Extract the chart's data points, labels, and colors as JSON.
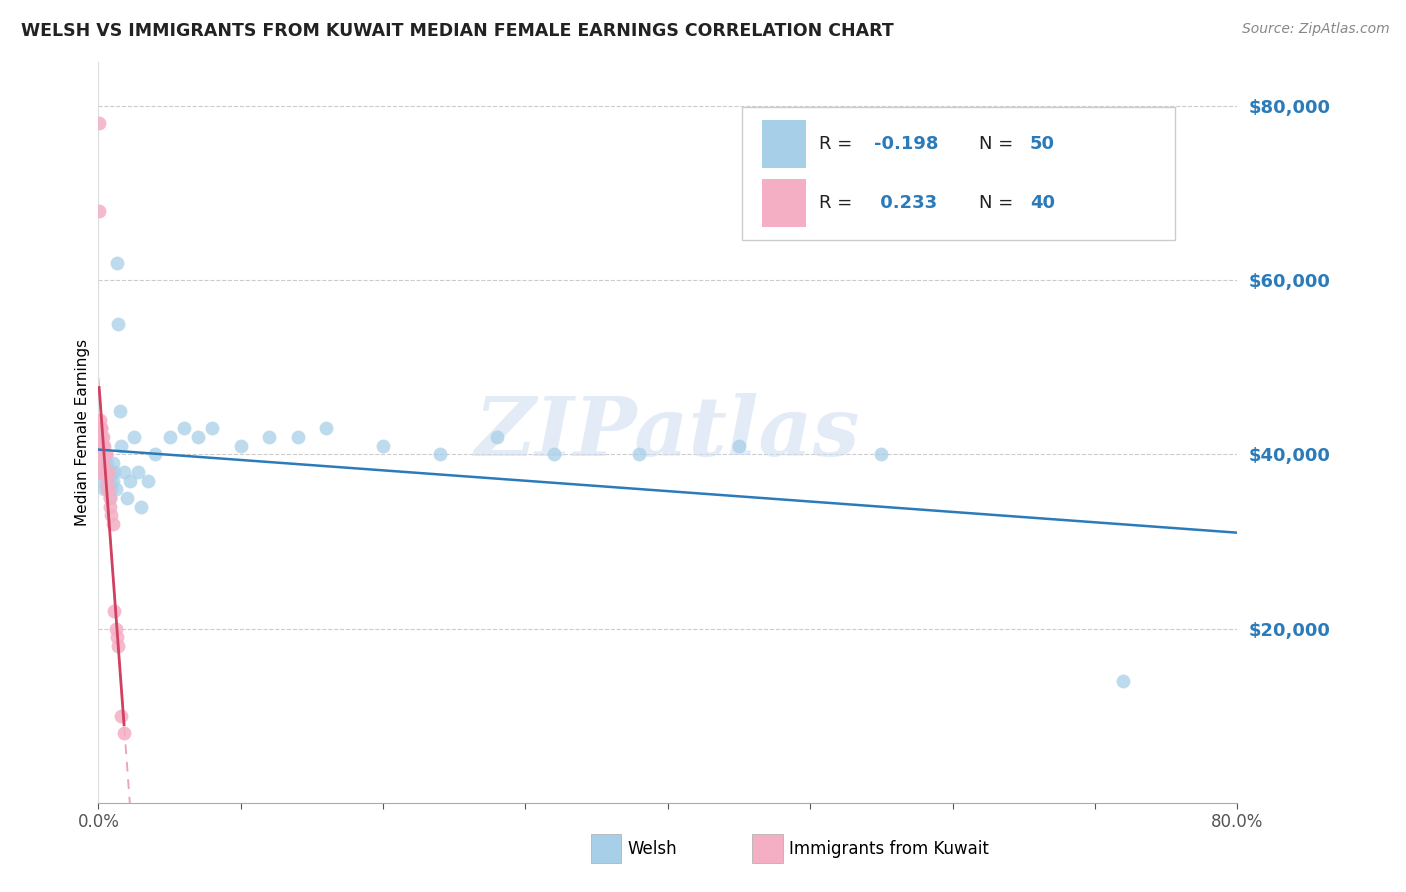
{
  "title": "WELSH VS IMMIGRANTS FROM KUWAIT MEDIAN FEMALE EARNINGS CORRELATION CHART",
  "source": "Source: ZipAtlas.com",
  "ylabel": "Median Female Earnings",
  "ytick_values": [
    20000,
    40000,
    60000,
    80000
  ],
  "ymin": 0,
  "ymax": 85000,
  "xmin": 0.0,
  "xmax": 0.8,
  "blue_color": "#a8cfe8",
  "pink_color": "#f4afc4",
  "blue_line_color": "#2b7bba",
  "pink_line_color": "#d04060",
  "pink_dash_color": "#e8a8bc",
  "watermark": "ZIPatlas",
  "bottom_legend_welsh": "Welsh",
  "bottom_legend_kuwait": "Immigrants from Kuwait",
  "welsh_x": [
    0.001,
    0.0015,
    0.002,
    0.0025,
    0.003,
    0.003,
    0.004,
    0.004,
    0.005,
    0.005,
    0.006,
    0.006,
    0.007,
    0.007,
    0.008,
    0.008,
    0.009,
    0.009,
    0.01,
    0.01,
    0.011,
    0.012,
    0.013,
    0.014,
    0.015,
    0.016,
    0.018,
    0.02,
    0.022,
    0.025,
    0.028,
    0.03,
    0.035,
    0.04,
    0.05,
    0.06,
    0.07,
    0.08,
    0.1,
    0.12,
    0.14,
    0.16,
    0.2,
    0.24,
    0.28,
    0.32,
    0.38,
    0.45,
    0.55,
    0.72
  ],
  "welsh_y": [
    42000,
    40000,
    38000,
    39000,
    41000,
    37000,
    39000,
    36000,
    38000,
    40000,
    37000,
    39000,
    36000,
    38000,
    35000,
    37000,
    38000,
    36000,
    39000,
    37000,
    38000,
    36000,
    62000,
    55000,
    45000,
    41000,
    38000,
    35000,
    37000,
    42000,
    38000,
    34000,
    37000,
    40000,
    42000,
    43000,
    42000,
    43000,
    41000,
    42000,
    42000,
    43000,
    41000,
    40000,
    42000,
    40000,
    40000,
    41000,
    40000,
    14000
  ],
  "kuwait_x": [
    0.0005,
    0.0005,
    0.001,
    0.001,
    0.001,
    0.001,
    0.001,
    0.001,
    0.0015,
    0.0015,
    0.0015,
    0.002,
    0.002,
    0.002,
    0.002,
    0.0025,
    0.0025,
    0.003,
    0.003,
    0.003,
    0.0035,
    0.004,
    0.004,
    0.004,
    0.005,
    0.005,
    0.006,
    0.006,
    0.007,
    0.007,
    0.008,
    0.008,
    0.009,
    0.01,
    0.011,
    0.012,
    0.013,
    0.014,
    0.016,
    0.018
  ],
  "kuwait_y": [
    78000,
    68000,
    44000,
    43000,
    42000,
    41000,
    40000,
    38000,
    43000,
    41000,
    40000,
    43000,
    42000,
    41000,
    39000,
    41000,
    39000,
    42000,
    41000,
    39000,
    40000,
    41000,
    40000,
    38000,
    40000,
    38000,
    37000,
    36000,
    38000,
    36000,
    35000,
    34000,
    33000,
    32000,
    22000,
    20000,
    19000,
    18000,
    10000,
    8000
  ]
}
